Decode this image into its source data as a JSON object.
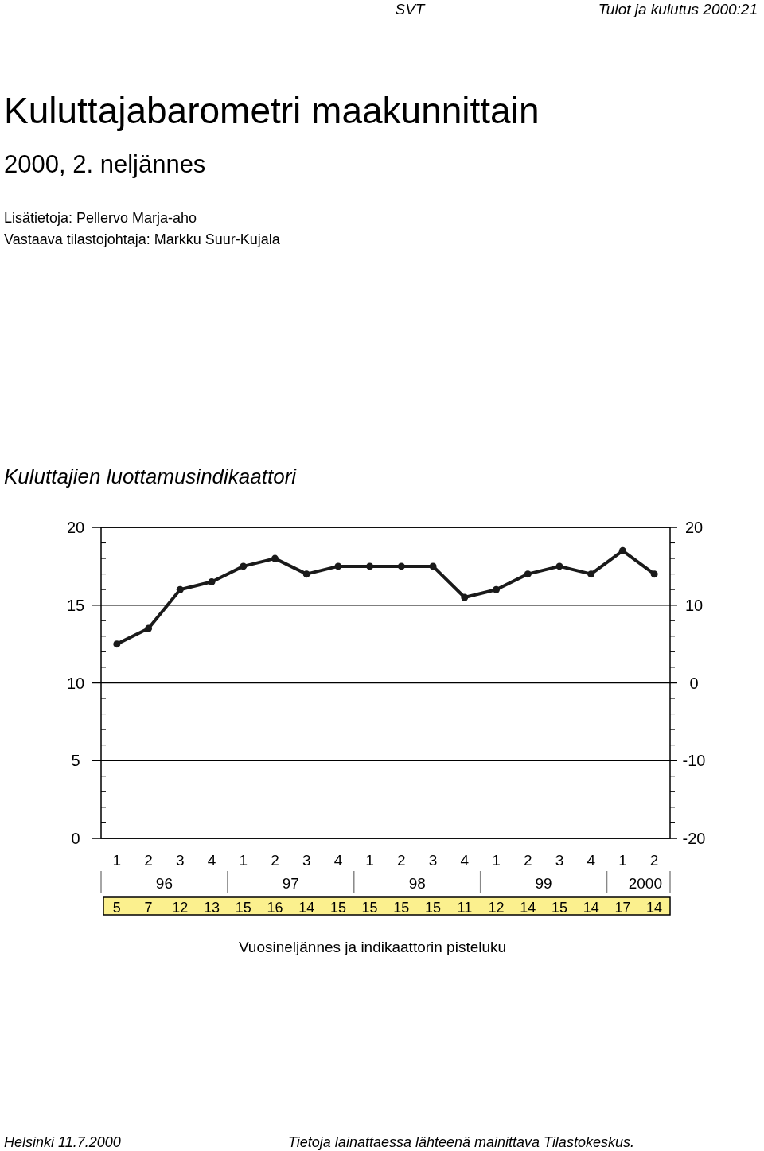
{
  "chart_data": {
    "type": "line",
    "title": "Kuluttajien luottamusindikaattori",
    "xlabel": "Vuosineljännes ja indikaattorin pisteluku",
    "annotations": [
      "SVT",
      "Tulot ja kulutus 2000:21",
      "Kuluttajabarometri maakunnittain",
      "2000, 2. neljännes",
      "Lisätietoja: Pellervo Marja-aho",
      "Vastaava tilastojohtaja: Markku Suur-Kujala",
      "Helsinki 11.7.2000",
      "Tietoja lainattaessa lähteenä mainittava Tilastokeskus.",
      "96",
      "97",
      "98",
      "99",
      "2000"
    ],
    "categories": [
      "1",
      "2",
      "3",
      "4",
      "1",
      "2",
      "3",
      "4",
      "1",
      "2",
      "3",
      "4",
      "1",
      "2",
      "3",
      "4",
      "1",
      "2"
    ],
    "series": [
      {
        "color": "#1a1a1a",
        "axis": "y2",
        "values": [
          5,
          7,
          12,
          13,
          15,
          16,
          14,
          15,
          15,
          15,
          15,
          11,
          12,
          14,
          15,
          14,
          17,
          14
        ]
      }
    ],
    "ylim": [
      0,
      20
    ],
    "yticks": [
      0,
      5,
      10,
      15,
      20
    ],
    "y2lim": [
      -20,
      20
    ],
    "y2ticks": [
      -20,
      -10,
      0,
      10,
      20
    ],
    "grid": "y",
    "marker": "circle",
    "line_style": "solid",
    "data_labels": true
  }
}
